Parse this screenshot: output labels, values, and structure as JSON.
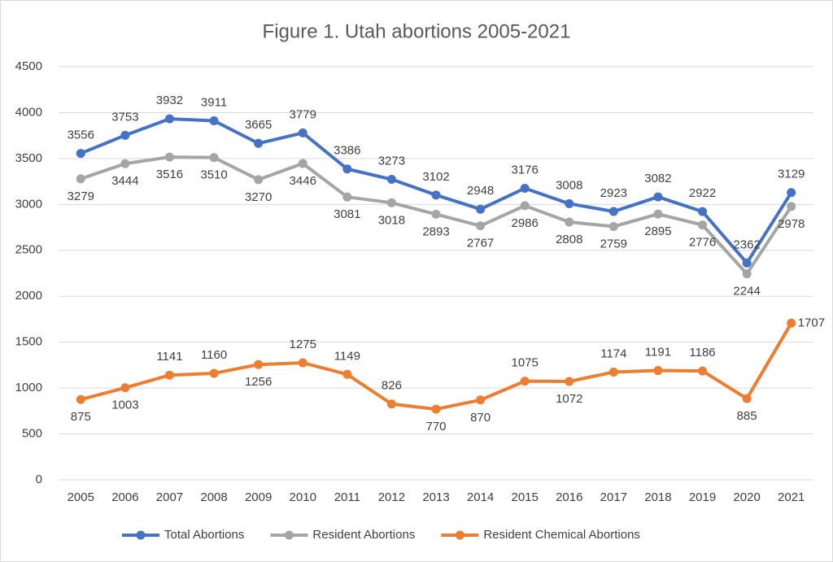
{
  "chart_data": {
    "type": "line",
    "title": "Figure 1. Utah abortions 2005-2021",
    "categories": [
      "2005",
      "2006",
      "2007",
      "2008",
      "2009",
      "2010",
      "2011",
      "2012",
      "2013",
      "2014",
      "2015",
      "2016",
      "2017",
      "2018",
      "2019",
      "2020",
      "2021"
    ],
    "series": [
      {
        "name": "Total Abortions",
        "color": "#4472c4",
        "values": [
          3556,
          3753,
          3932,
          3911,
          3665,
          3779,
          3386,
          3273,
          3102,
          2948,
          3176,
          3008,
          2923,
          3082,
          2922,
          2362,
          3129
        ]
      },
      {
        "name": "Resident Abortions",
        "color": "#a5a5a5",
        "values": [
          3279,
          3444,
          3516,
          3510,
          3270,
          3446,
          3081,
          3018,
          2893,
          2767,
          2986,
          2808,
          2759,
          2895,
          2776,
          2244,
          2978
        ]
      },
      {
        "name": "Resident Chemical Abortions",
        "color": "#ed7d31",
        "values": [
          875,
          1003,
          1141,
          1160,
          1256,
          1275,
          1149,
          826,
          770,
          870,
          1075,
          1072,
          1174,
          1191,
          1186,
          885,
          1707
        ]
      }
    ],
    "ylim": [
      0,
      4500
    ],
    "yticks": [
      0,
      500,
      1000,
      1500,
      2000,
      2500,
      3000,
      3500,
      4000,
      4500
    ],
    "grid": true,
    "legend": "bottom"
  }
}
